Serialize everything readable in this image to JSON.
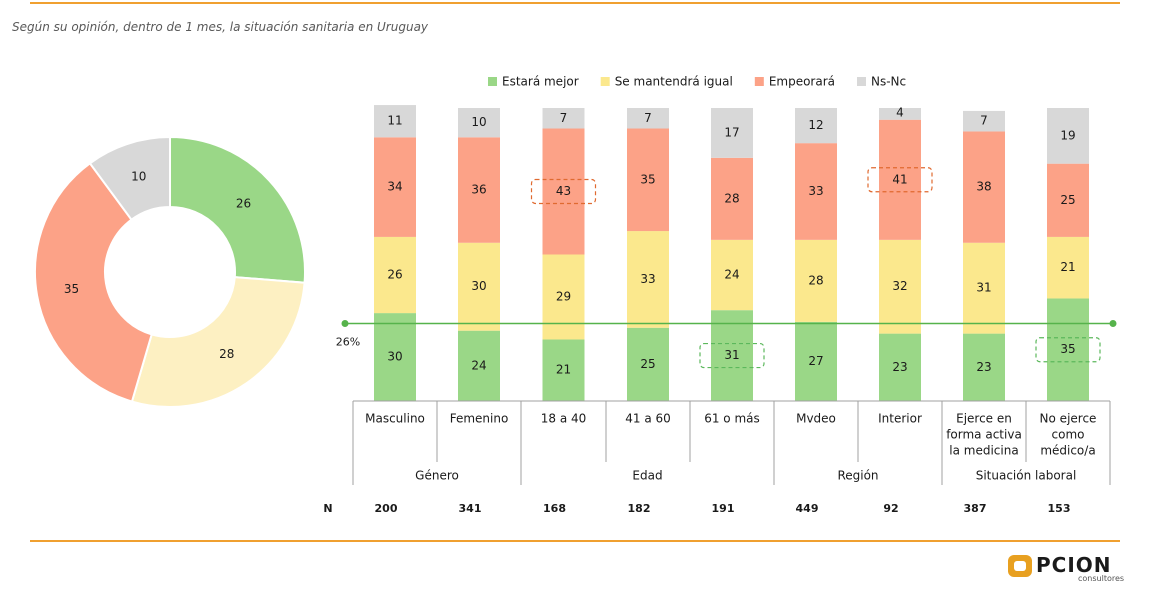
{
  "subtitle": "Según su opinión, dentro de 1 mes, la situación sanitaria en Uruguay",
  "colors": {
    "accent_rule": "#f0a030",
    "mejor": "#9ad787",
    "igual": "#fbe88d",
    "peor": "#fca287",
    "nsnc": "#d8d8d8",
    "donut_igual": "#fdf0c2",
    "highlight_peor": "#e06a30",
    "highlight_mejor": "#5cb85c",
    "reference_line": "#56b34b"
  },
  "brand": {
    "name": "PCION",
    "tagline": "consultores"
  },
  "chart_data": [
    {
      "type": "pie",
      "donut": true,
      "labels": [
        "Estará mejor",
        "Se mantendrá igual",
        "Empeorará",
        "Ns-Nc"
      ],
      "values": [
        26,
        28,
        35,
        10
      ]
    },
    {
      "type": "bar",
      "stacked": true,
      "legend": {
        "position": "top",
        "entries": [
          "Estará mejor",
          "Se mantendrá igual",
          "Empeorará",
          "Ns-Nc"
        ]
      },
      "categories": [
        "Masculino",
        "Femenino",
        "18 a 40",
        "41 a 60",
        "61 o más",
        "Mvdeo",
        "Interior",
        "Ejerce en forma activa la medicina",
        "No ejerce como médico/a"
      ],
      "category_lines": [
        [
          "Masculino"
        ],
        [
          "Femenino"
        ],
        [
          "18 a 40"
        ],
        [
          "41 a 60"
        ],
        [
          "61 o más"
        ],
        [
          "Mvdeo"
        ],
        [
          "Interior"
        ],
        [
          "Ejerce en",
          "forma activa",
          "la medicina"
        ],
        [
          "No ejerce",
          "como",
          "médico/a"
        ]
      ],
      "groups": [
        {
          "label": "Género",
          "start": 0,
          "end": 1
        },
        {
          "label": "Edad",
          "start": 2,
          "end": 4
        },
        {
          "label": "Región",
          "start": 5,
          "end": 6
        },
        {
          "label": "Situación laboral",
          "start": 7,
          "end": 8
        }
      ],
      "series": [
        {
          "name": "Estará mejor",
          "values": [
            30,
            24,
            21,
            25,
            31,
            27,
            23,
            23,
            35
          ]
        },
        {
          "name": "Se mantendrá igual",
          "values": [
            26,
            30,
            29,
            33,
            24,
            28,
            32,
            31,
            21
          ]
        },
        {
          "name": "Empeorará",
          "values": [
            34,
            36,
            43,
            35,
            28,
            33,
            41,
            38,
            25
          ]
        },
        {
          "name": "Ns-Nc",
          "values": [
            11,
            10,
            7,
            7,
            17,
            12,
            4,
            7,
            19
          ]
        }
      ],
      "reference_line": {
        "value": 26,
        "label": "26%"
      },
      "highlights": [
        {
          "category": 2,
          "series": 2
        },
        {
          "category": 6,
          "series": 2
        },
        {
          "category": 4,
          "series": 0
        },
        {
          "category": 8,
          "series": 0
        }
      ],
      "n_label": "N",
      "n_values": [
        200,
        341,
        168,
        182,
        191,
        449,
        92,
        387,
        153
      ]
    }
  ]
}
